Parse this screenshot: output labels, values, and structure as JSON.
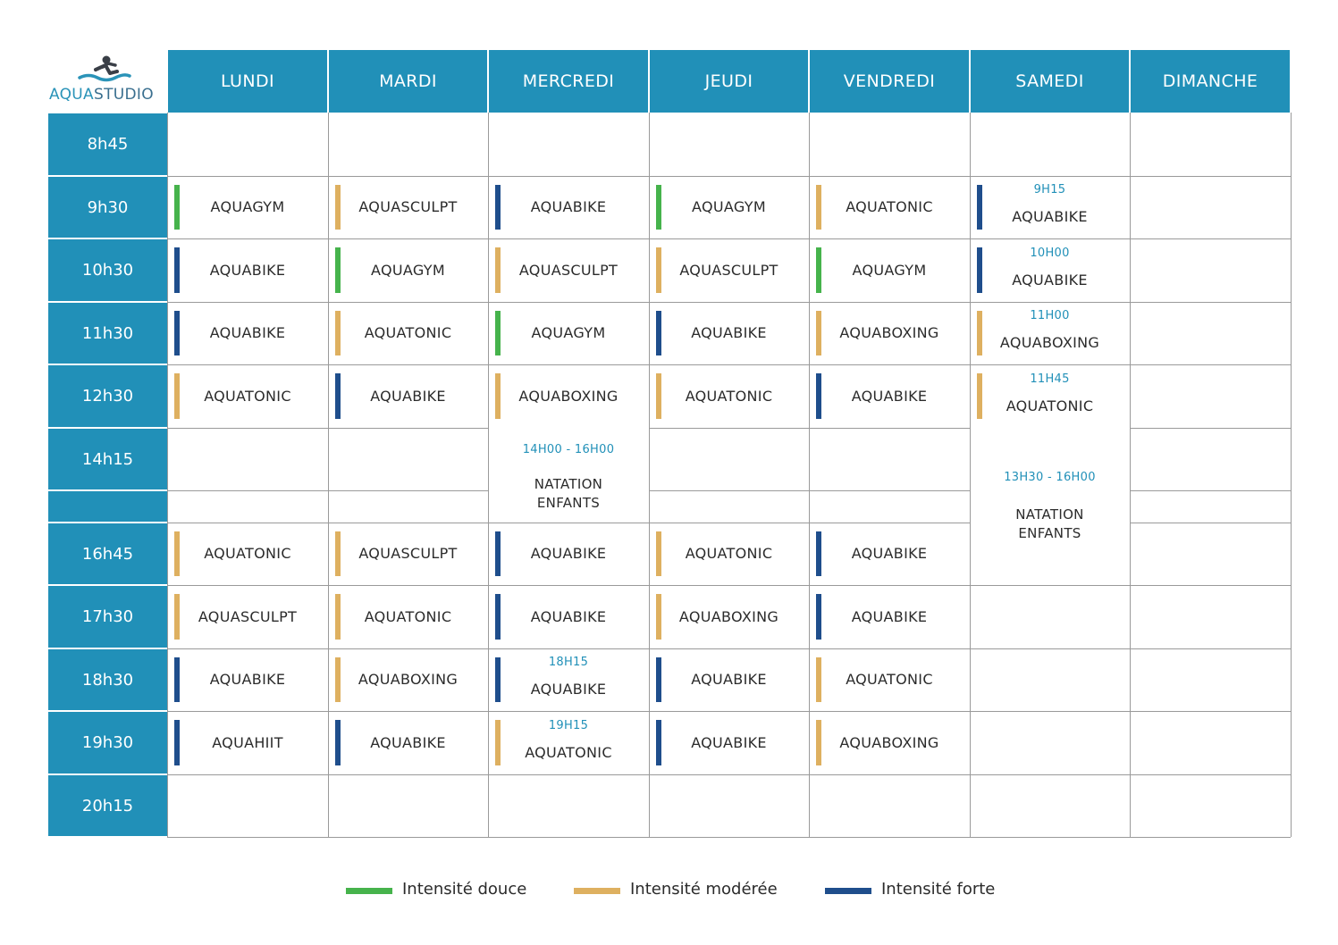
{
  "brand": {
    "part1": "AQUA",
    "part2": "STUDIO",
    "logo_icon": "swimmer-icon"
  },
  "days": [
    "LUNDI",
    "MARDI",
    "MERCREDI",
    "JEUDI",
    "VENDREDI",
    "SAMEDI",
    "DIMANCHE"
  ],
  "times": [
    "8h45",
    "9h30",
    "10h30",
    "11h30",
    "12h30",
    "14h15",
    "",
    "16h45",
    "17h30",
    "18h30",
    "19h30",
    "20h15"
  ],
  "colors": {
    "douce": "#46b34c",
    "moderee": "#deb060",
    "forte": "#1f4e8c",
    "header": "#2190b8"
  },
  "schedule": [
    [
      null,
      null,
      null,
      null,
      null,
      null,
      null
    ],
    [
      {
        "name": "AQUAGYM",
        "level": "douce"
      },
      {
        "name": "AQUASCULPT",
        "level": "moderee"
      },
      {
        "name": "AQUABIKE",
        "level": "forte"
      },
      {
        "name": "AQUAGYM",
        "level": "douce"
      },
      {
        "name": "AQUATONIC",
        "level": "moderee"
      },
      {
        "name": "AQUABIKE",
        "level": "forte",
        "time": "9H15"
      },
      null
    ],
    [
      {
        "name": "AQUABIKE",
        "level": "forte"
      },
      {
        "name": "AQUAGYM",
        "level": "douce"
      },
      {
        "name": "AQUASCULPT",
        "level": "moderee"
      },
      {
        "name": "AQUASCULPT",
        "level": "moderee"
      },
      {
        "name": "AQUAGYM",
        "level": "douce"
      },
      {
        "name": "AQUABIKE",
        "level": "forte",
        "time": "10H00"
      },
      null
    ],
    [
      {
        "name": "AQUABIKE",
        "level": "forte"
      },
      {
        "name": "AQUATONIC",
        "level": "moderee"
      },
      {
        "name": "AQUAGYM",
        "level": "douce"
      },
      {
        "name": "AQUABIKE",
        "level": "forte"
      },
      {
        "name": "AQUABOXING",
        "level": "moderee"
      },
      {
        "name": "AQUABOXING",
        "level": "moderee",
        "time": "11H00"
      },
      null
    ],
    [
      {
        "name": "AQUATONIC",
        "level": "moderee"
      },
      {
        "name": "AQUABIKE",
        "level": "forte"
      },
      {
        "name": "AQUABOXING",
        "level": "moderee"
      },
      {
        "name": "AQUATONIC",
        "level": "moderee"
      },
      {
        "name": "AQUABIKE",
        "level": "forte"
      },
      {
        "name": "AQUATONIC",
        "level": "moderee",
        "time": "11H45"
      },
      null
    ],
    [
      null,
      null,
      "MERGE",
      null,
      null,
      "MERGE",
      null
    ],
    [
      null,
      null,
      "MERGE",
      null,
      null,
      "MERGE",
      null
    ],
    [
      {
        "name": "AQUATONIC",
        "level": "moderee"
      },
      {
        "name": "AQUASCULPT",
        "level": "moderee"
      },
      {
        "name": "AQUABIKE",
        "level": "forte"
      },
      {
        "name": "AQUATONIC",
        "level": "moderee"
      },
      {
        "name": "AQUABIKE",
        "level": "forte"
      },
      "MERGE",
      null
    ],
    [
      {
        "name": "AQUASCULPT",
        "level": "moderee"
      },
      {
        "name": "AQUATONIC",
        "level": "moderee"
      },
      {
        "name": "AQUABIKE",
        "level": "forte"
      },
      {
        "name": "AQUABOXING",
        "level": "moderee"
      },
      {
        "name": "AQUABIKE",
        "level": "forte"
      },
      null,
      null
    ],
    [
      {
        "name": "AQUABIKE",
        "level": "forte"
      },
      {
        "name": "AQUABOXING",
        "level": "moderee"
      },
      {
        "name": "AQUABIKE",
        "level": "forte",
        "time": "18H15"
      },
      {
        "name": "AQUABIKE",
        "level": "forte"
      },
      {
        "name": "AQUATONIC",
        "level": "moderee"
      },
      null,
      null
    ],
    [
      {
        "name": "AQUAHIIT",
        "level": "forte"
      },
      {
        "name": "AQUABIKE",
        "level": "forte"
      },
      {
        "name": "AQUATONIC",
        "level": "moderee",
        "time": "19H15"
      },
      {
        "name": "AQUABIKE",
        "level": "forte"
      },
      {
        "name": "AQUABOXING",
        "level": "moderee"
      },
      null,
      null
    ],
    [
      null,
      null,
      null,
      null,
      null,
      null,
      null
    ]
  ],
  "natation_mercredi": {
    "time": "14H00 - 16H00",
    "line1": "NATATION",
    "line2": "ENFANTS"
  },
  "natation_samedi": {
    "time": "13H30 - 16H00",
    "line1": "NATATION",
    "line2": "ENFANTS"
  },
  "legend": [
    {
      "label": "Intensité douce",
      "level": "douce"
    },
    {
      "label": "Intensité modérée",
      "level": "moderee"
    },
    {
      "label": "Intensité forte",
      "level": "forte"
    }
  ]
}
